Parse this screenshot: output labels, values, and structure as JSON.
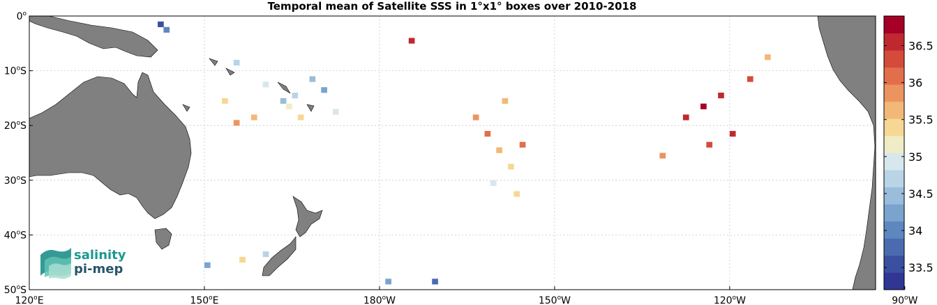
{
  "chart_data": {
    "type": "heatmap",
    "title": "Temporal mean of Satellite SSS in 1°x1° boxes over 2010-2018",
    "x_axis": {
      "range_deg_lon": [
        120,
        265
      ],
      "ticks": [
        {
          "value": 120,
          "num": "120",
          "sup": "o",
          "hemi": "E"
        },
        {
          "value": 150,
          "num": "150",
          "sup": "o",
          "hemi": "E"
        },
        {
          "value": 180,
          "num": "180",
          "sup": "o",
          "hemi": "W"
        },
        {
          "value": 210,
          "num": "150",
          "sup": "o",
          "hemi": "W"
        },
        {
          "value": 240,
          "num": "120",
          "sup": "o",
          "hemi": "W"
        },
        {
          "value": 270,
          "num": "90",
          "sup": "o",
          "hemi": "W"
        }
      ]
    },
    "y_axis": {
      "range_deg_lat": [
        -50,
        0
      ],
      "ticks": [
        {
          "value": 0,
          "num": "0",
          "sup": "o",
          "hemi": ""
        },
        {
          "value": -10,
          "num": "10",
          "sup": "o",
          "hemi": "S"
        },
        {
          "value": -20,
          "num": "20",
          "sup": "o",
          "hemi": "S"
        },
        {
          "value": -30,
          "num": "30",
          "sup": "o",
          "hemi": "S"
        },
        {
          "value": -40,
          "num": "40",
          "sup": "o",
          "hemi": "S"
        },
        {
          "value": -50,
          "num": "50",
          "sup": "o",
          "hemi": "S"
        }
      ]
    },
    "grid": true,
    "colorbar": {
      "range": [
        33.2,
        36.9
      ],
      "tick_labels": [
        "33.5",
        "34",
        "34.5",
        "35",
        "35.5",
        "36",
        "36.5"
      ],
      "colors": [
        "#313695",
        "#3a4fa0",
        "#4a6bb0",
        "#5d87bf",
        "#7aa3cd",
        "#99bddb",
        "#b8d4e6",
        "#d6e8ee",
        "#f0ecc6",
        "#f7d794",
        "#f3b877",
        "#ec9460",
        "#e26e4c",
        "#d44b3b",
        "#c0282f",
        "#a50026"
      ]
    },
    "cells": [
      {
        "lon": 163,
        "lat": -16,
        "value": 34.4
      },
      {
        "lon": 164,
        "lat": -17,
        "value": 35.1
      },
      {
        "lon": 165,
        "lat": -15,
        "value": 34.7
      },
      {
        "lon": 166,
        "lat": -19,
        "value": 35.3
      },
      {
        "lon": 168,
        "lat": -12,
        "value": 34.5
      },
      {
        "lon": 170,
        "lat": -14,
        "value": 34.3
      },
      {
        "lon": 172,
        "lat": -18,
        "value": 35.0
      },
      {
        "lon": 158,
        "lat": -19,
        "value": 35.6
      },
      {
        "lon": 160,
        "lat": -13,
        "value": 34.9
      },
      {
        "lon": 155,
        "lat": -9,
        "value": 34.6
      },
      {
        "lon": 153,
        "lat": -16,
        "value": 35.4
      },
      {
        "lon": 155,
        "lat": -20,
        "value": 35.8
      },
      {
        "lon": 196,
        "lat": -19,
        "value": 35.9
      },
      {
        "lon": 198,
        "lat": -22,
        "value": 36.1
      },
      {
        "lon": 200,
        "lat": -25,
        "value": 35.6
      },
      {
        "lon": 202,
        "lat": -28,
        "value": 35.3
      },
      {
        "lon": 204,
        "lat": -24,
        "value": 36.2
      },
      {
        "lon": 201,
        "lat": -16,
        "value": 35.7
      },
      {
        "lon": 199,
        "lat": -31,
        "value": 35.0
      },
      {
        "lon": 203,
        "lat": -33,
        "value": 35.4
      },
      {
        "lon": 232,
        "lat": -19,
        "value": 36.6
      },
      {
        "lon": 235,
        "lat": -17,
        "value": 36.7
      },
      {
        "lon": 238,
        "lat": -15,
        "value": 36.5
      },
      {
        "lon": 240,
        "lat": -22,
        "value": 36.6
      },
      {
        "lon": 236,
        "lat": -24,
        "value": 36.3
      },
      {
        "lon": 228,
        "lat": -26,
        "value": 35.9
      },
      {
        "lon": 243,
        "lat": -12,
        "value": 36.4
      },
      {
        "lon": 246,
        "lat": -8,
        "value": 35.7
      },
      {
        "lon": 185,
        "lat": -5,
        "value": 36.5
      },
      {
        "lon": 150,
        "lat": -46,
        "value": 34.3
      },
      {
        "lon": 156,
        "lat": -45,
        "value": 35.4
      },
      {
        "lon": 160,
        "lat": -44,
        "value": 34.8
      },
      {
        "lon": 181,
        "lat": -49,
        "value": 34.2
      },
      {
        "lon": 189,
        "lat": -49,
        "value": 33.8
      },
      {
        "lon": 142,
        "lat": -2,
        "value": 33.6
      },
      {
        "lon": 143,
        "lat": -3,
        "value": 34.1
      }
    ]
  },
  "logo": {
    "line1": "salinity",
    "line2": "pi-mep"
  }
}
